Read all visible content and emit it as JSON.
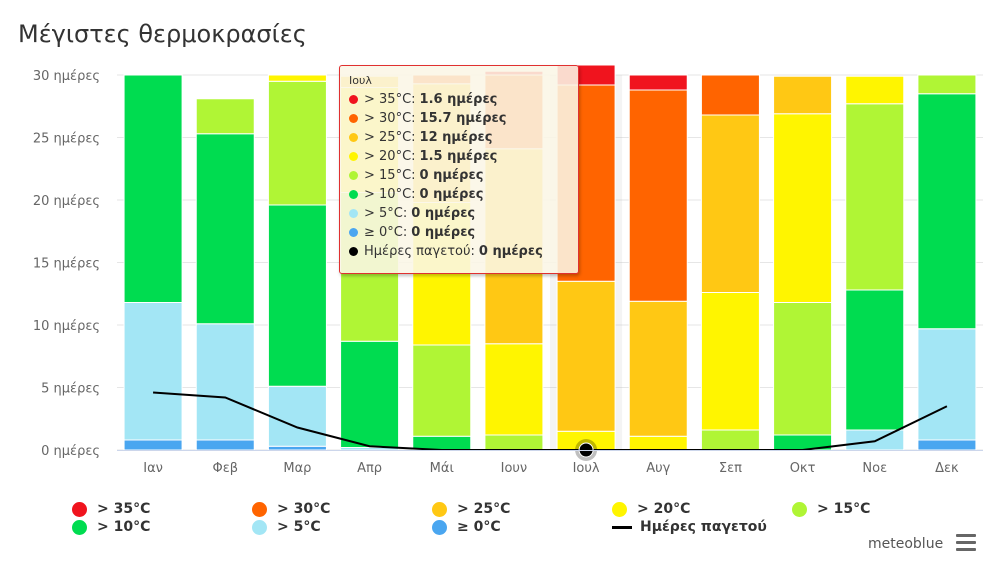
{
  "title": "Μέγιστες θερμοκρασίες",
  "brand": "meteoblue",
  "chart_data": {
    "type": "bar",
    "stacked": true,
    "categories": [
      "Ιαν",
      "Φεβ",
      "Μαρ",
      "Απρ",
      "Μάι",
      "Ιουν",
      "Ιουλ",
      "Αυγ",
      "Σεπ",
      "Οκτ",
      "Νοε",
      "Δεκ"
    ],
    "y_ticks": [
      "0 ημέρες",
      "5 ημέρες",
      "10 ημέρες",
      "15 ημέρες",
      "20 ημέρες",
      "25 ημέρες",
      "30 ημέρες"
    ],
    "ylim": [
      0,
      30
    ],
    "grid": true,
    "legend_position": "bottom",
    "series": [
      {
        "name": "≥ 0°C",
        "color": "#4aa6f0",
        "values": [
          0.8,
          0.8,
          0.3,
          0,
          0,
          0,
          0,
          0,
          0,
          0,
          0,
          0.8
        ]
      },
      {
        "name": "> 5°C",
        "color": "#a3e6f5",
        "values": [
          11.0,
          9.3,
          4.8,
          0.2,
          0,
          0,
          0,
          0,
          0,
          0,
          1.6,
          8.9
        ]
      },
      {
        "name": "> 10°C",
        "color": "#00dc50",
        "values": [
          18.2,
          15.2,
          14.5,
          8.5,
          1.1,
          0,
          0,
          0,
          0,
          1.2,
          11.2,
          18.8
        ]
      },
      {
        "name": "> 15°C",
        "color": "#b0f535",
        "values": [
          0,
          2.8,
          9.9,
          11.9,
          7.3,
          1.2,
          0,
          0,
          1.6,
          10.6,
          14.9,
          1.5
        ]
      },
      {
        "name": "> 20°C",
        "color": "#fff500",
        "values": [
          0,
          0,
          0.5,
          8.4,
          11.4,
          7.3,
          1.5,
          1.1,
          11.0,
          15.1,
          2.2,
          0
        ]
      },
      {
        "name": "> 25°C",
        "color": "#ffc814",
        "values": [
          0,
          0,
          0,
          0.9,
          9.5,
          15.6,
          12.0,
          10.8,
          14.2,
          3.0,
          0,
          0
        ]
      },
      {
        "name": "> 30°C",
        "color": "#ff6400",
        "values": [
          0,
          0,
          0,
          0,
          0.7,
          5.9,
          15.7,
          16.9,
          3.2,
          0,
          0,
          0
        ]
      },
      {
        "name": "> 35°C",
        "color": "#f0141e",
        "values": [
          0,
          0,
          0,
          0,
          0,
          0.3,
          1.6,
          1.2,
          0,
          0,
          0,
          0
        ]
      }
    ],
    "frost_days": {
      "name": "Ημέρες παγετού",
      "color": "#000000",
      "values": [
        4.6,
        4.2,
        1.8,
        0.3,
        0,
        0,
        0,
        0,
        0,
        0,
        0.7,
        3.5
      ]
    },
    "legend": {
      "items": [
        {
          "label": "> 35°C",
          "color": "#f0141e",
          "kind": "dot"
        },
        {
          "label": "> 30°C",
          "color": "#ff6400",
          "kind": "dot"
        },
        {
          "label": "> 25°C",
          "color": "#ffc814",
          "kind": "dot"
        },
        {
          "label": "> 20°C",
          "color": "#fff500",
          "kind": "dot"
        },
        {
          "label": "> 15°C",
          "color": "#b0f535",
          "kind": "dot"
        },
        {
          "label": "> 10°C",
          "color": "#00dc50",
          "kind": "dot"
        },
        {
          "label": "> 5°C",
          "color": "#a3e6f5",
          "kind": "dot"
        },
        {
          "label": "≥ 0°C",
          "color": "#4aa6f0",
          "kind": "dot"
        },
        {
          "label": "Ημέρες παγετού",
          "color": "#000000",
          "kind": "line"
        }
      ]
    },
    "tooltip": {
      "title": "Ιουλ",
      "highlighted_index": 6,
      "rows": [
        {
          "label": "> 35°C:",
          "value": "1.6 ημέρες",
          "color": "#f0141e"
        },
        {
          "label": "> 30°C:",
          "value": "15.7 ημέρες",
          "color": "#ff6400"
        },
        {
          "label": "> 25°C:",
          "value": "12 ημέρες",
          "color": "#ffc814"
        },
        {
          "label": "> 20°C:",
          "value": "1.5 ημέρες",
          "color": "#fff500"
        },
        {
          "label": "> 15°C:",
          "value": "0 ημέρες",
          "color": "#b0f535"
        },
        {
          "label": "> 10°C:",
          "value": "0 ημέρες",
          "color": "#00dc50"
        },
        {
          "label": "> 5°C:",
          "value": "0 ημέρες",
          "color": "#a3e6f5"
        },
        {
          "label": "≥ 0°C:",
          "value": "0 ημέρες",
          "color": "#4aa6f0"
        },
        {
          "label": "Ημέρες παγετού:",
          "value": "0 ημέρες",
          "color": "#000000"
        }
      ]
    }
  }
}
